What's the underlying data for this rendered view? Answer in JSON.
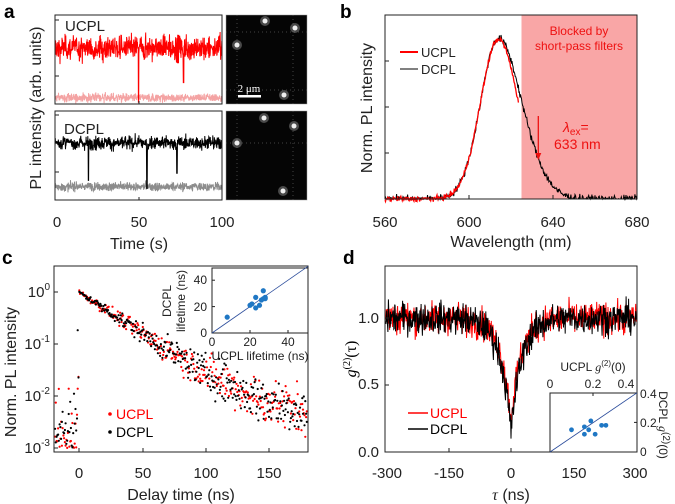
{
  "panel_labels": {
    "a": "a",
    "b": "b",
    "c": "c",
    "d": "d"
  },
  "colors": {
    "ucpl": "#ff0000",
    "ucpl_bg": "#f4a3a3",
    "dcpl": "#000000",
    "dcpl_bg": "#8c8c8c",
    "blocked": "#f9a6a6",
    "inset_point": "#1f77c4",
    "inset_line": "#2b4c9b"
  },
  "chart_data": [
    {
      "panel": "a",
      "type": "line",
      "xlabel": "Time (s)",
      "ylabel": "PL intensity (arb. units)",
      "xlim": [
        0,
        100
      ],
      "xticks": [
        "0",
        "50",
        "100"
      ],
      "series": [
        {
          "name": "UCPL",
          "mean_level": 0.63,
          "background_level": 0.07,
          "blink_times": [
            50,
            77
          ],
          "blink_depths": [
            0.02,
            0.24
          ]
        },
        {
          "name": "DCPL",
          "mean_level": 0.64,
          "background_level": 0.15,
          "blink_times": [
            20,
            55,
            73
          ],
          "blink_depths": [
            0.22,
            0.13,
            0.3
          ]
        }
      ],
      "image_scalebar": "2 μm"
    },
    {
      "panel": "b",
      "type": "line",
      "xlabel": "Wavelength (nm)",
      "ylabel": "Norm. PL intensity",
      "xlim": [
        560,
        680
      ],
      "xticks": [
        "560",
        "600",
        "640",
        "680"
      ],
      "series": [
        {
          "name": "UCPL",
          "peak_nm": 614,
          "range_nm": [
            560,
            623.5
          ]
        },
        {
          "name": "DCPL",
          "peak_nm": 614,
          "range_nm": [
            560,
            680
          ]
        }
      ],
      "blocked_region_nm": [
        625,
        680
      ],
      "blocked_label_1": "Blocked by",
      "blocked_label_2": "short-pass filters",
      "excitation_label": "λ",
      "excitation_sub": "ex",
      "excitation_eq": "=",
      "excitation_value": "633 nm",
      "excitation_nm": 633
    },
    {
      "panel": "c",
      "type": "scatter",
      "xlabel": "Delay time (ns)",
      "ylabel": "Norm. PL intensity",
      "xlim": [
        -20,
        182
      ],
      "ylim_log10": [
        -3.08,
        0.5
      ],
      "xticks": [
        "0",
        "50",
        "100",
        "150"
      ],
      "yticks": [
        {
          "base": "10",
          "exp": "0"
        },
        {
          "base": "10",
          "exp": "-1"
        },
        {
          "base": "10",
          "exp": "-2"
        },
        {
          "base": "10",
          "exp": "-3"
        }
      ],
      "series": [
        {
          "name": "UCPL",
          "lifetime_ns": 27,
          "floor": 0.004
        },
        {
          "name": "DCPL",
          "lifetime_ns": 27,
          "floor": 0.004
        }
      ],
      "inset": {
        "type": "scatter",
        "xlabel": "UCPL lifetime (ns)",
        "ylabel_1": "DCPL",
        "ylabel_2": "lifetime (ns)",
        "xlim": [
          0,
          50
        ],
        "ylim": [
          0,
          50
        ],
        "xticks": [
          "0",
          "20",
          "40"
        ],
        "yticks": [
          "0",
          "20",
          "40"
        ],
        "points": [
          [
            8,
            12
          ],
          [
            20,
            21
          ],
          [
            21,
            22
          ],
          [
            23,
            27
          ],
          [
            23,
            19
          ],
          [
            25,
            21
          ],
          [
            26,
            25
          ],
          [
            27,
            26
          ],
          [
            27,
            32
          ],
          [
            28,
            27
          ],
          [
            28,
            26
          ]
        ]
      }
    },
    {
      "panel": "d",
      "type": "line",
      "xlabel": "(ns)",
      "xlabel_symbol": "τ",
      "ylabel": {
        "g": "g",
        "sup": "(2)",
        "arg": "(τ)"
      },
      "xlim": [
        -300,
        300
      ],
      "ylim": [
        0,
        1.39
      ],
      "xticks": [
        "-300",
        "-150",
        "0",
        "150",
        "300"
      ],
      "yticks": [
        "0.0",
        "0.5",
        "1.0"
      ],
      "series": [
        {
          "name": "UCPL",
          "g2_zero": 0.25,
          "antibunching_time_ns": 25
        },
        {
          "name": "DCPL",
          "g2_zero": 0.15,
          "antibunching_time_ns": 25
        }
      ],
      "inset": {
        "type": "scatter",
        "xlabel": {
          "pre": "UCPL ",
          "g": "g",
          "sup": "(2)",
          "arg": "(0)"
        },
        "ylabel": {
          "pre": "DCPL ",
          "g": "g",
          "sup": "(2)",
          "arg": "(0)"
        },
        "xlim": [
          0,
          0.4
        ],
        "ylim": [
          0,
          0.4
        ],
        "xticks": [
          "0",
          "0.2",
          "0.4"
        ],
        "yticks": [
          "0",
          "0.2",
          "0.4"
        ],
        "points": [
          [
            0.1,
            0.15
          ],
          [
            0.16,
            0.17
          ],
          [
            0.18,
            0.15
          ],
          [
            0.19,
            0.21
          ],
          [
            0.16,
            0.12
          ],
          [
            0.21,
            0.12
          ],
          [
            0.24,
            0.18
          ],
          [
            0.26,
            0.18
          ]
        ]
      }
    }
  ]
}
